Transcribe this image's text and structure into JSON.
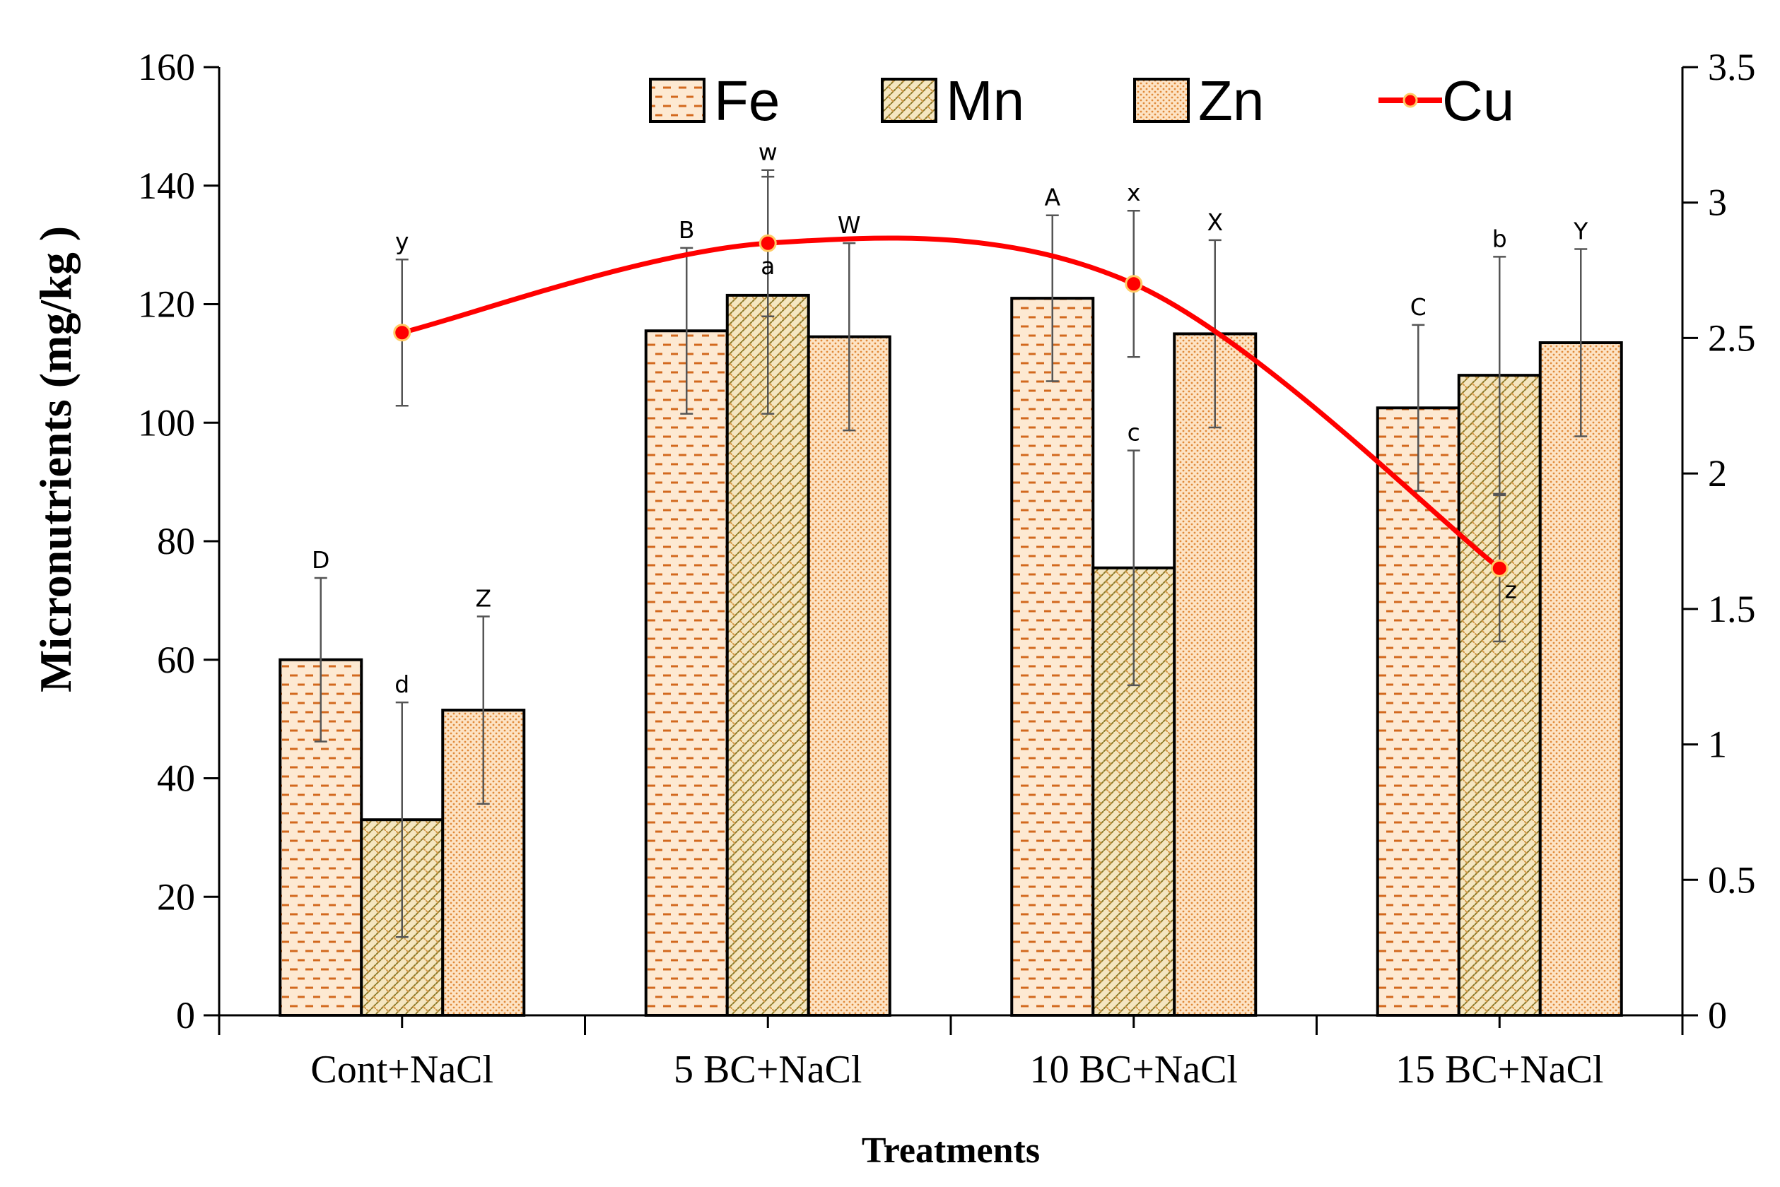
{
  "chart_data": {
    "type": "bar",
    "title": "",
    "xlabel": "Treatments",
    "ylabel": "Micronutrients (mg/kg )",
    "ylim": [
      0,
      160
    ],
    "y_ticks": [
      "0",
      "20",
      "40",
      "60",
      "80",
      "100",
      "120",
      "140",
      "160"
    ],
    "y2lim": [
      0,
      3.5
    ],
    "y2_ticks": [
      "0",
      "0.5",
      "1",
      "1.5",
      "2",
      "2.5",
      "3",
      "3.5"
    ],
    "categories": [
      "Cont+NaCl",
      "5 BC+NaCl",
      "10 BC+NaCl",
      "15 BC+NaCl"
    ],
    "series": [
      {
        "name": "Fe",
        "type": "bar",
        "axis": "left",
        "pattern": "dash",
        "values": [
          60,
          115.5,
          121,
          102.5
        ],
        "errors": [
          13.8,
          14,
          14,
          14
        ],
        "letters": [
          "D",
          "B",
          "A",
          "C"
        ]
      },
      {
        "name": "Mn",
        "type": "bar",
        "axis": "left",
        "pattern": "weave",
        "values": [
          33,
          121.5,
          75.5,
          108
        ],
        "errors": [
          19.8,
          20,
          19.8,
          20
        ],
        "letters": [
          "d",
          "a",
          "c",
          "b"
        ]
      },
      {
        "name": "Zn",
        "type": "bar",
        "axis": "left",
        "pattern": "dots",
        "values": [
          51.5,
          114.5,
          115,
          113.5
        ],
        "errors": [
          15.8,
          15.8,
          15.8,
          15.8
        ],
        "letters": [
          "Z",
          "W",
          "X",
          "Y"
        ]
      },
      {
        "name": "Cu",
        "type": "line",
        "axis": "right",
        "values": [
          2.52,
          2.85,
          2.7,
          1.65
        ],
        "errors": [
          0.27,
          0.27,
          0.27,
          0.27
        ],
        "letters": [
          "y",
          "w",
          "x",
          "z"
        ]
      }
    ],
    "legend": {
      "position": "top",
      "entries": [
        "Fe",
        "Mn",
        "Zn",
        "Cu"
      ]
    }
  },
  "colors": {
    "bar_fill": "#fde9d2",
    "pattern": "#d2691e",
    "mn_pattern": "#8b7a2a",
    "cu_line": "#ff0000",
    "error_bar": "#555555"
  }
}
